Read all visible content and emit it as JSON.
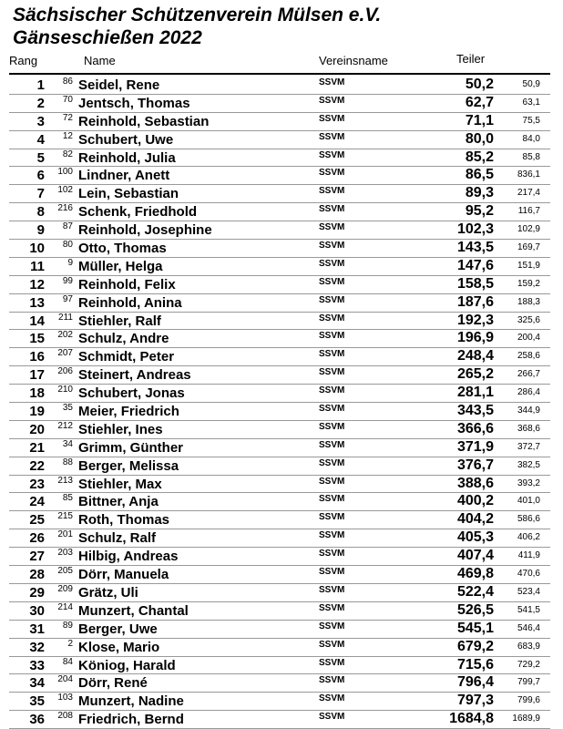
{
  "title": "Sächsischer Schützenverein Mülsen e.V.",
  "subtitle": "Gänseschießen 2022",
  "headers": {
    "rang": "Rang",
    "name": "Name",
    "verein": "Vereinsname",
    "teiler": "Teiler"
  },
  "rows": [
    {
      "rang": "1",
      "nr": "86",
      "name": "Seidel, Rene",
      "verein": "SSVM",
      "teiler": "50,2",
      "teiler2": "50,9"
    },
    {
      "rang": "2",
      "nr": "70",
      "name": "Jentsch, Thomas",
      "verein": "SSVM",
      "teiler": "62,7",
      "teiler2": "63,1"
    },
    {
      "rang": "3",
      "nr": "72",
      "name": "Reinhold, Sebastian",
      "verein": "SSVM",
      "teiler": "71,1",
      "teiler2": "75,5"
    },
    {
      "rang": "4",
      "nr": "12",
      "name": "Schubert, Uwe",
      "verein": "SSVM",
      "teiler": "80,0",
      "teiler2": "84,0"
    },
    {
      "rang": "5",
      "nr": "82",
      "name": "Reinhold, Julia",
      "verein": "SSVM",
      "teiler": "85,2",
      "teiler2": "85,8"
    },
    {
      "rang": "6",
      "nr": "100",
      "name": "Lindner, Anett",
      "verein": "SSVM",
      "teiler": "86,5",
      "teiler2": "836,1"
    },
    {
      "rang": "7",
      "nr": "102",
      "name": "Lein, Sebastian",
      "verein": "SSVM",
      "teiler": "89,3",
      "teiler2": "217,4"
    },
    {
      "rang": "8",
      "nr": "216",
      "name": "Schenk, Friedhold",
      "verein": "SSVM",
      "teiler": "95,2",
      "teiler2": "116,7"
    },
    {
      "rang": "9",
      "nr": "87",
      "name": "Reinhold, Josephine",
      "verein": "SSVM",
      "teiler": "102,3",
      "teiler2": "102,9"
    },
    {
      "rang": "10",
      "nr": "80",
      "name": "Otto, Thomas",
      "verein": "SSVM",
      "teiler": "143,5",
      "teiler2": "169,7"
    },
    {
      "rang": "11",
      "nr": "9",
      "name": "Müller, Helga",
      "verein": "SSVM",
      "teiler": "147,6",
      "teiler2": "151,9"
    },
    {
      "rang": "12",
      "nr": "99",
      "name": "Reinhold, Felix",
      "verein": "SSVM",
      "teiler": "158,5",
      "teiler2": "159,2"
    },
    {
      "rang": "13",
      "nr": "97",
      "name": "Reinhold, Anina",
      "verein": "SSVM",
      "teiler": "187,6",
      "teiler2": "188,3"
    },
    {
      "rang": "14",
      "nr": "211",
      "name": "Stiehler, Ralf",
      "verein": "SSVM",
      "teiler": "192,3",
      "teiler2": "325,6"
    },
    {
      "rang": "15",
      "nr": "202",
      "name": "Schulz, Andre",
      "verein": "SSVM",
      "teiler": "196,9",
      "teiler2": "200,4"
    },
    {
      "rang": "16",
      "nr": "207",
      "name": "Schmidt, Peter",
      "verein": "SSVM",
      "teiler": "248,4",
      "teiler2": "258,6"
    },
    {
      "rang": "17",
      "nr": "206",
      "name": "Steinert, Andreas",
      "verein": "SSVM",
      "teiler": "265,2",
      "teiler2": "266,7"
    },
    {
      "rang": "18",
      "nr": "210",
      "name": "Schubert, Jonas",
      "verein": "SSVM",
      "teiler": "281,1",
      "teiler2": "286,4"
    },
    {
      "rang": "19",
      "nr": "35",
      "name": "Meier, Friedrich",
      "verein": "SSVM",
      "teiler": "343,5",
      "teiler2": "344,9"
    },
    {
      "rang": "20",
      "nr": "212",
      "name": "Stiehler, Ines",
      "verein": "SSVM",
      "teiler": "366,6",
      "teiler2": "368,6"
    },
    {
      "rang": "21",
      "nr": "34",
      "name": "Grimm, Günther",
      "verein": "SSVM",
      "teiler": "371,9",
      "teiler2": "372,7"
    },
    {
      "rang": "22",
      "nr": "88",
      "name": "Berger, Melissa",
      "verein": "SSVM",
      "teiler": "376,7",
      "teiler2": "382,5"
    },
    {
      "rang": "23",
      "nr": "213",
      "name": "Stiehler, Max",
      "verein": "SSVM",
      "teiler": "388,6",
      "teiler2": "393,2"
    },
    {
      "rang": "24",
      "nr": "85",
      "name": "Bittner, Anja",
      "verein": "SSVM",
      "teiler": "400,2",
      "teiler2": "401,0"
    },
    {
      "rang": "25",
      "nr": "215",
      "name": "Roth, Thomas",
      "verein": "SSVM",
      "teiler": "404,2",
      "teiler2": "586,6"
    },
    {
      "rang": "26",
      "nr": "201",
      "name": "Schulz, Ralf",
      "verein": "SSVM",
      "teiler": "405,3",
      "teiler2": "406,2"
    },
    {
      "rang": "27",
      "nr": "203",
      "name": "Hilbig, Andreas",
      "verein": "SSVM",
      "teiler": "407,4",
      "teiler2": "411,9"
    },
    {
      "rang": "28",
      "nr": "205",
      "name": "Dörr, Manuela",
      "verein": "SSVM",
      "teiler": "469,8",
      "teiler2": "470,6"
    },
    {
      "rang": "29",
      "nr": "209",
      "name": "Grätz, Uli",
      "verein": "SSVM",
      "teiler": "522,4",
      "teiler2": "523,4"
    },
    {
      "rang": "30",
      "nr": "214",
      "name": "Munzert, Chantal",
      "verein": "SSVM",
      "teiler": "526,5",
      "teiler2": "541,5"
    },
    {
      "rang": "31",
      "nr": "89",
      "name": "Berger, Uwe",
      "verein": "SSVM",
      "teiler": "545,1",
      "teiler2": "546,4"
    },
    {
      "rang": "32",
      "nr": "2",
      "name": "Klose, Mario",
      "verein": "SSVM",
      "teiler": "679,2",
      "teiler2": "683,9"
    },
    {
      "rang": "33",
      "nr": "84",
      "name": "Köniog, Harald",
      "verein": "SSVM",
      "teiler": "715,6",
      "teiler2": "729,2"
    },
    {
      "rang": "34",
      "nr": "204",
      "name": "Dörr, René",
      "verein": "SSVM",
      "teiler": "796,4",
      "teiler2": "799,7"
    },
    {
      "rang": "35",
      "nr": "103",
      "name": "Munzert, Nadine",
      "verein": "SSVM",
      "teiler": "797,3",
      "teiler2": "799,6"
    },
    {
      "rang": "36",
      "nr": "208",
      "name": "Friedrich, Bernd",
      "verein": "SSVM",
      "teiler": "1684,8",
      "teiler2": "1689,9"
    }
  ]
}
